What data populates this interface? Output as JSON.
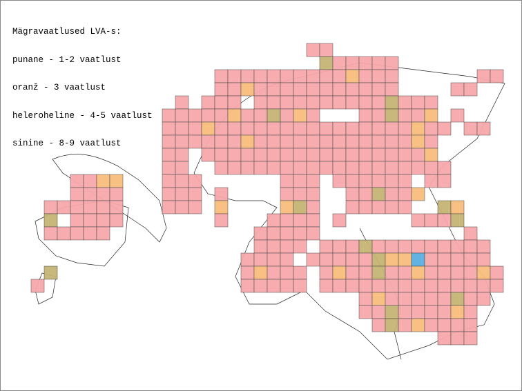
{
  "legend": {
    "title": "Mägravaatlused LVA-s:",
    "items": [
      "punane - 1-2 vaatlust",
      "oranž - 3 vaatlust",
      "heleroheline - 4-5 vaatlust",
      "sinine - 8-9 vaatlust"
    ]
  }
}
